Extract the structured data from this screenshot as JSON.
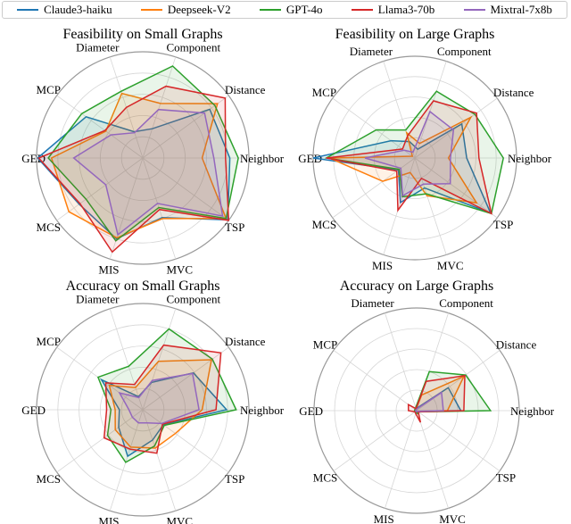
{
  "chart_data": {
    "type": "radar",
    "axes": [
      "Neighbor",
      "Distance",
      "Component",
      "Diameter",
      "MCP",
      "GED",
      "MCS",
      "MIS",
      "MVC",
      "TSP"
    ],
    "rlim": [
      0,
      1
    ],
    "grid": true,
    "legend_placement": "top",
    "series_names": [
      "Claude3-haiku",
      "Deepseek-V2",
      "GPT-4o",
      "Llama3-70b",
      "Mixtral-7x8b"
    ],
    "colors": {
      "Claude3-haiku": "#1f77b4",
      "Deepseek-V2": "#ff7f0e",
      "GPT-4o": "#2ca02c",
      "Llama3-70b": "#d62728",
      "Mixtral-7x8b": "#9467bd"
    },
    "charts": [
      {
        "title": "Feasibility on Small Graphs",
        "series": [
          {
            "name": "Claude3-haiku",
            "values": [
              0.82,
              0.78,
              0.29,
              0.26,
              0.66,
              0.99,
              0.74,
              0.8,
              0.59,
              0.99
            ]
          },
          {
            "name": "Deepseek-V2",
            "values": [
              0.56,
              0.87,
              0.54,
              0.64,
              0.43,
              0.86,
              0.86,
              0.79,
              0.6,
              0.97
            ]
          },
          {
            "name": "GPT-4o",
            "values": [
              0.9,
              0.84,
              0.91,
              0.66,
              0.71,
              0.89,
              0.66,
              0.82,
              0.49,
              0.97
            ]
          },
          {
            "name": "Llama3-70b",
            "values": [
              0.78,
              0.96,
              0.71,
              0.5,
              0.44,
              0.98,
              0.73,
              0.93,
              0.51,
              1.0
            ]
          },
          {
            "name": "Mixtral-7x8b",
            "values": [
              0.67,
              0.72,
              0.48,
              0.25,
              0.37,
              0.65,
              0.43,
              0.76,
              0.45,
              0.93
            ]
          }
        ]
      },
      {
        "title": "Feasibility on Large Graphs",
        "series": [
          {
            "name": "Claude3-haiku",
            "values": [
              0.51,
              0.57,
              0.09,
              0.17,
              0.29,
              1.0,
              0.2,
              0.46,
              0.31,
              0.92
            ]
          },
          {
            "name": "Deepseek-V2",
            "values": [
              0.33,
              0.68,
              0.15,
              0.26,
              0.03,
              0.84,
              0.39,
              0.15,
              0.39,
              0.75
            ]
          },
          {
            "name": "GPT-4o",
            "values": [
              0.87,
              0.73,
              0.69,
              0.29,
              0.47,
              0.87,
              0.19,
              0.4,
              0.37,
              0.93
            ]
          },
          {
            "name": "Llama3-70b",
            "values": [
              0.63,
              0.75,
              0.59,
              0.23,
              0.15,
              0.87,
              0.22,
              0.54,
              0.21,
              0.93
            ]
          },
          {
            "name": "Mixtral-7x8b",
            "values": [
              0.35,
              0.47,
              0.48,
              0.06,
              0.13,
              0.49,
              0.17,
              0.39,
              0.27,
              0.43
            ]
          }
        ]
      },
      {
        "title": "Accuracy on Small Graphs",
        "series": [
          {
            "name": "Claude3-haiku",
            "values": [
              0.79,
              0.59,
              0.27,
              0.13,
              0.48,
              0.22,
              0.28,
              0.46,
              0.3,
              0.24
            ]
          },
          {
            "name": "Deepseek-V2",
            "values": [
              0.56,
              0.8,
              0.48,
              0.22,
              0.39,
              0.26,
              0.32,
              0.37,
              0.38,
              0.38
            ]
          },
          {
            "name": "GPT-4o",
            "values": [
              0.88,
              0.81,
              0.8,
              0.43,
              0.52,
              0.3,
              0.41,
              0.52,
              0.36,
              0.25
            ]
          },
          {
            "name": "Llama3-70b",
            "values": [
              0.69,
              0.91,
              0.64,
              0.25,
              0.43,
              0.34,
              0.45,
              0.39,
              0.43,
              0.23
            ]
          },
          {
            "name": "Mixtral-7x8b",
            "values": [
              0.53,
              0.58,
              0.29,
              0.12,
              0.27,
              0.13,
              0.12,
              0.13,
              0.13,
              0.22
            ]
          }
        ]
      },
      {
        "title": "Accuracy on Large Graphs",
        "series": [
          {
            "name": "Claude3-haiku",
            "values": [
              0.43,
              0.38,
              0.03,
              0.01,
              0.01,
              0.01,
              0.01,
              0.01,
              0.01,
              0.01
            ]
          },
          {
            "name": "Deepseek-V2",
            "values": [
              0.3,
              0.57,
              0.16,
              0.02,
              0.02,
              0.02,
              0.01,
              0.01,
              0.02,
              0.01
            ]
          },
          {
            "name": "GPT-4o",
            "values": [
              0.72,
              0.59,
              0.4,
              0.03,
              0.02,
              0.02,
              0.02,
              0.02,
              0.03,
              0.02
            ]
          },
          {
            "name": "Llama3-70b",
            "values": [
              0.46,
              0.58,
              0.3,
              0.02,
              0.1,
              0.08,
              0.02,
              0.03,
              0.12,
              0.02
            ]
          },
          {
            "name": "Mixtral-7x8b",
            "values": [
              0.26,
              0.3,
              0.02,
              0.01,
              0.01,
              0.01,
              0.01,
              0.01,
              0.01,
              0.01
            ]
          }
        ]
      }
    ]
  }
}
